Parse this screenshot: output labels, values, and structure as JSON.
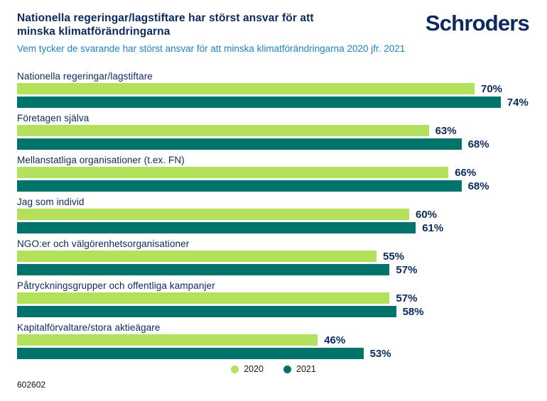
{
  "header": {
    "title_line1": "Nationella regeringar/lagstiftare har störst ansvar för att",
    "title_line2": "minska klimatförändringarna",
    "subtitle": "Vem tycker de svarande har störst ansvar för att minska klimatförändringarna 2020 jfr. 2021",
    "logo_text": "Schroders"
  },
  "chart_data": {
    "type": "bar",
    "orientation": "horizontal",
    "title": "Nationella regeringar/lagstiftare har störst ansvar för att minska klimatförändringarna",
    "subtitle": "Vem tycker de svarande har störst ansvar för att minska klimatförändringarna 2020 jfr. 2021",
    "categories": [
      "Nationella regeringar/lagstiftare",
      "Företagen själva",
      "Mellanstatliga organisationer (t.ex. FN)",
      "Jag som individ",
      "NGO:er och välgörenhetsorganisationer",
      "Påtryckningsgrupper och offentliga kampanjer",
      "Kapitalförvaltare/stora aktieägare"
    ],
    "series": [
      {
        "name": "2020",
        "color": "#b4e15c",
        "values": [
          70,
          63,
          66,
          60,
          55,
          57,
          46
        ]
      },
      {
        "name": "2021",
        "color": "#00746a",
        "values": [
          74,
          68,
          68,
          61,
          57,
          58,
          53
        ]
      }
    ],
    "value_suffix": "%",
    "xlim": [
      0,
      81
    ],
    "grid": false,
    "axes_visible": false,
    "legend_position": "bottom-center"
  },
  "legend": {
    "items": [
      {
        "label": "2020",
        "color": "#b4e15c"
      },
      {
        "label": "2021",
        "color": "#00746a"
      }
    ]
  },
  "footer": {
    "code": "602602"
  },
  "colors": {
    "background": "#ffffff",
    "title_navy": "#0a2a5e",
    "subtitle_blue": "#1b84c8",
    "value_label_navy": "#0a2a5e",
    "legend_text": "#1a1a1a"
  }
}
